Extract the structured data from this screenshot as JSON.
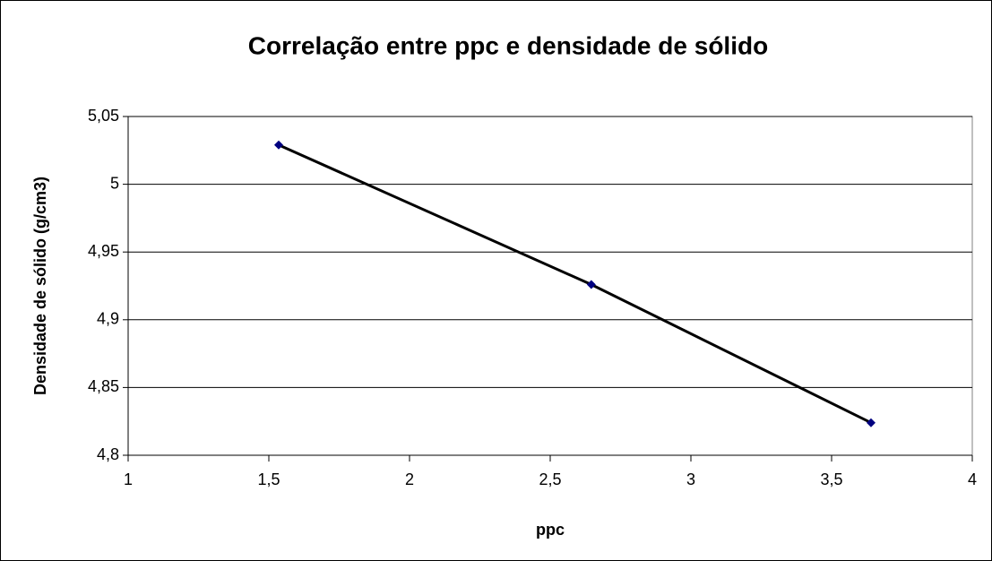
{
  "chart_data": {
    "type": "scatter",
    "title": "Correlação entre ppc e densidade de sólido",
    "x_label": "ppc",
    "y_label": "Densidade de sólido (g/cm3)",
    "series": [
      {
        "color": "#000080",
        "line_color": "#000000",
        "x": [
          1.535,
          2.646,
          3.64
        ],
        "values": [
          5.029,
          4.926,
          4.824
        ]
      }
    ],
    "xlim": [
      1,
      4
    ],
    "xticks": [
      1,
      {
        "value": 1.5,
        "label": "1,5"
      },
      2,
      {
        "value": 2.5,
        "label": "2,5"
      },
      3,
      {
        "value": 3.5,
        "label": "3,5"
      },
      4
    ],
    "ylim": [
      4.8,
      5.05
    ],
    "yticks": [
      {
        "value": 4.8,
        "label": "4,8"
      },
      {
        "value": 4.85,
        "label": "4,85"
      },
      {
        "value": 4.9,
        "label": "4,9"
      },
      {
        "value": 4.95,
        "label": "4,95"
      },
      5,
      {
        "value": 5.05,
        "label": "5,05"
      }
    ],
    "grid": true
  }
}
